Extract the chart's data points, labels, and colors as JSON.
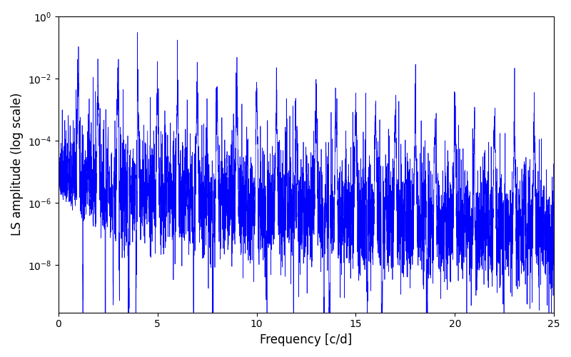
{
  "xlabel": "Frequency [c/d]",
  "ylabel": "LS amplitude (log scale)",
  "line_color": "#0000ff",
  "line_width": 0.5,
  "xlim": [
    0,
    25
  ],
  "ylim": [
    3e-10,
    1.0
  ],
  "xmin": 0.0,
  "xmax": 25.0,
  "freq_resolution": 5000,
  "background_color": "#ffffff",
  "figsize": [
    8.0,
    5.0
  ],
  "dpi": 100
}
